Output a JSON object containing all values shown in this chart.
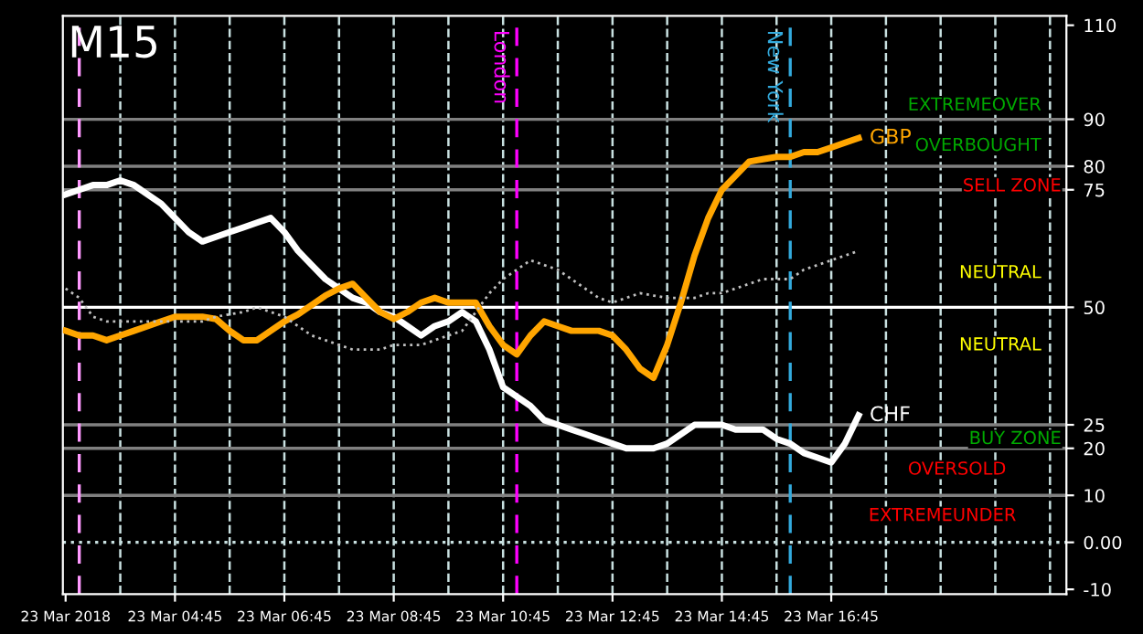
{
  "chart_data": {
    "type": "line",
    "title": "M15",
    "categories": [
      "23 Mar 2018",
      null,
      null,
      null,
      null,
      null,
      null,
      null,
      "23 Mar 04:45",
      null,
      null,
      null,
      null,
      null,
      null,
      null,
      "23 Mar 06:45",
      null,
      null,
      null,
      null,
      null,
      null,
      null,
      "23 Mar 08:45",
      null,
      null,
      null,
      null,
      null,
      null,
      null,
      "23 Mar 10:45",
      null,
      null,
      null,
      null,
      null,
      null,
      null,
      "23 Mar 12:45",
      null,
      null,
      null,
      null,
      null,
      null,
      null,
      "23 Mar 14:45",
      null,
      null,
      null,
      null,
      null,
      null,
      null,
      "23 Mar 16:45",
      null,
      null,
      null,
      null,
      null,
      null,
      null,
      null,
      null,
      null,
      null,
      null,
      null,
      null,
      null,
      null,
      null
    ],
    "ylim": [
      -11,
      112
    ],
    "yticks": [
      -10,
      {
        "value": 0,
        "label": "0.00"
      },
      10,
      20,
      25,
      50,
      75,
      80,
      90,
      110
    ],
    "grid": "x",
    "legend": false,
    "series": [
      {
        "name": "CHF",
        "color": "#ffffff",
        "line_style": "solid",
        "values": [
          74,
          75,
          76,
          76,
          77,
          76,
          74,
          72,
          69,
          66,
          64,
          65,
          66,
          67,
          68,
          69,
          66,
          62,
          59,
          56,
          54,
          52,
          51,
          49,
          48,
          46,
          44,
          46,
          47,
          49,
          47,
          41,
          33,
          31,
          29,
          26,
          25,
          24,
          23,
          22,
          21,
          20,
          20,
          20,
          21,
          23,
          25,
          25,
          25,
          24,
          24,
          24,
          22,
          21,
          19,
          18,
          17,
          21,
          27,
          null,
          null,
          null,
          null,
          null,
          null,
          null,
          null,
          null,
          null,
          null,
          null,
          null,
          null,
          null
        ]
      },
      {
        "name": "GBP",
        "color": "#ffa500",
        "line_style": "solid",
        "values": [
          45,
          44,
          44,
          43,
          44,
          45,
          46,
          47,
          48,
          48,
          48,
          47.5,
          45,
          43,
          43,
          45,
          47,
          48.5,
          50.5,
          52.5,
          54,
          55,
          52,
          49,
          47.5,
          49,
          51,
          52,
          51,
          51,
          51,
          46,
          42,
          40,
          44,
          47,
          46,
          45,
          45,
          45,
          44,
          41,
          37,
          35,
          42,
          51,
          61,
          69,
          75,
          78,
          81,
          81.5,
          82,
          82,
          83,
          83,
          84,
          85,
          86,
          null,
          null,
          null,
          null,
          null,
          null,
          null,
          null,
          null,
          null,
          null,
          null,
          null,
          null,
          null
        ]
      },
      {
        "color": "#c0c0c0",
        "line_style": "dotted",
        "values": [
          54,
          52,
          48,
          47,
          47,
          47,
          47,
          47,
          47,
          47,
          47,
          48,
          48.5,
          49,
          50,
          49,
          48,
          46,
          44,
          43,
          42,
          41,
          41,
          41,
          42,
          42,
          42,
          43,
          44,
          45,
          49,
          53,
          56,
          58,
          60,
          59,
          58,
          56,
          54,
          52,
          51,
          52,
          53,
          52.5,
          52,
          52,
          52,
          53,
          53,
          54,
          55,
          56,
          56,
          56,
          58,
          59,
          60,
          61,
          62,
          null,
          null,
          null,
          null,
          null,
          null,
          null,
          null,
          null,
          null,
          null,
          null,
          null,
          null,
          null
        ]
      }
    ],
    "ref_lines": [
      {
        "axis": "y",
        "value": 90,
        "color": "#808080",
        "line_style": "solid"
      },
      {
        "axis": "y",
        "value": 80,
        "color": "#808080",
        "line_style": "solid"
      },
      {
        "axis": "y",
        "value": 75,
        "color": "#808080",
        "line_style": "solid"
      },
      {
        "axis": "y",
        "value": 50,
        "color": "#ffffff",
        "line_style": "solid"
      },
      {
        "axis": "y",
        "value": 25,
        "color": "#808080",
        "line_style": "solid"
      },
      {
        "axis": "y",
        "value": 20,
        "color": "#808080",
        "line_style": "solid"
      },
      {
        "axis": "y",
        "value": 10,
        "color": "#808080",
        "line_style": "solid"
      },
      {
        "axis": "y",
        "value": 0,
        "color": "#c8e0e0",
        "line_style": "dotted"
      }
    ],
    "annotations": [
      "London",
      "New York",
      "EXTREMEOVER",
      "OVERBOUGHT",
      "SELL ZONE",
      "NEUTRAL",
      "NEUTRAL",
      "BUY ZONE",
      "OVERSOLD",
      "EXTREMEUNDER"
    ]
  }
}
